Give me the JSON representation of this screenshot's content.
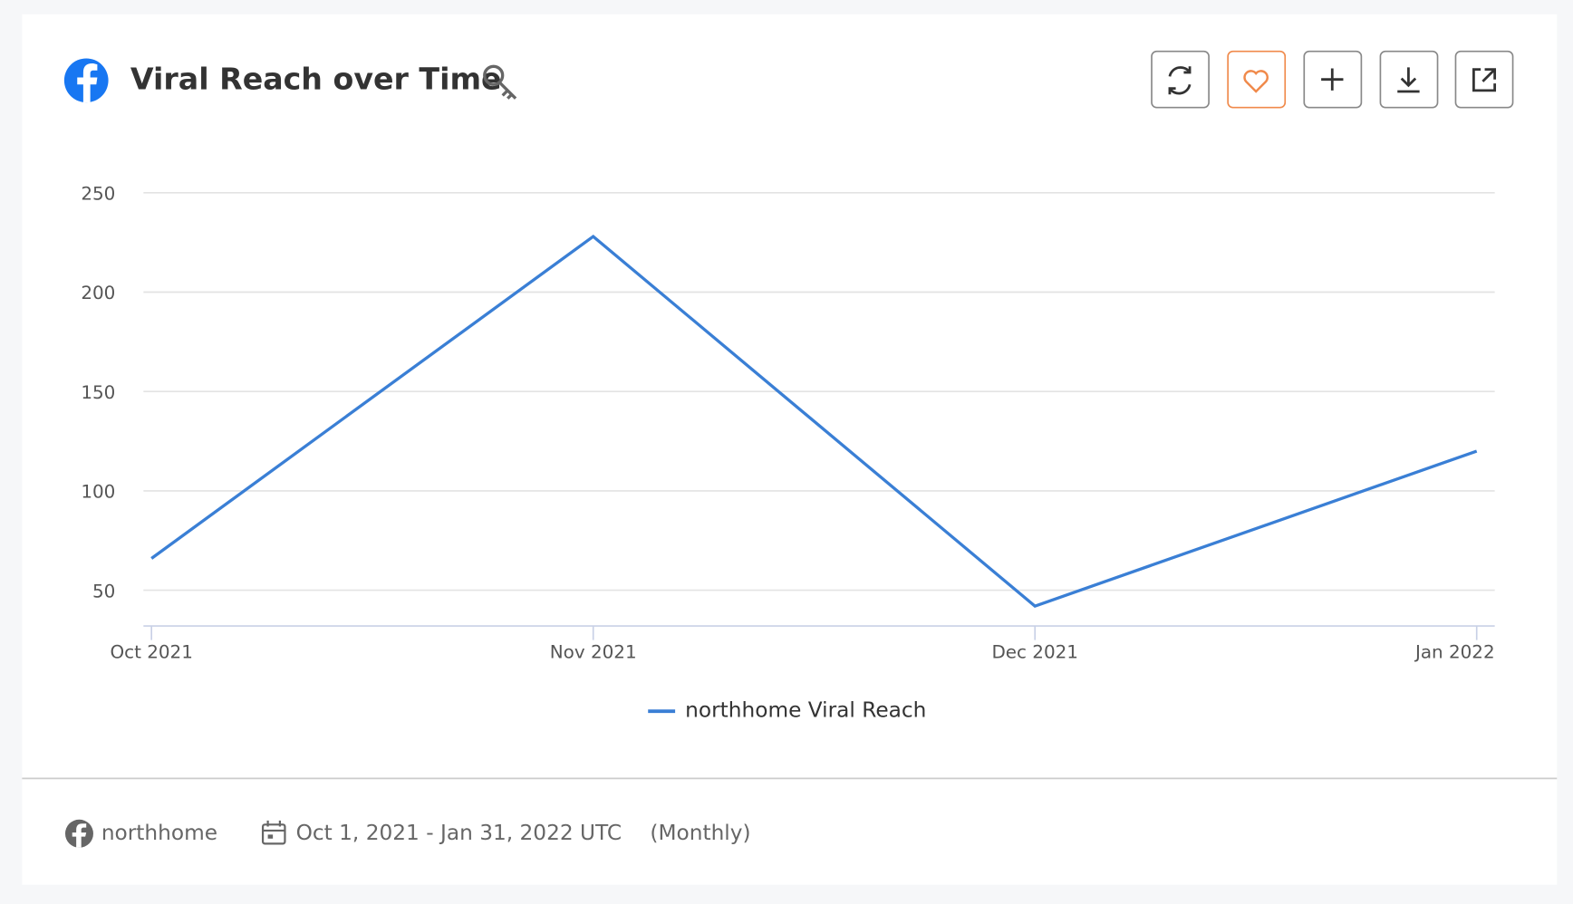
{
  "chart_data": {
    "type": "line",
    "title": "Viral Reach over Time",
    "categories": [
      "Oct 2021",
      "Nov 2021",
      "Dec 2021",
      "Jan 2022"
    ],
    "series": [
      {
        "name": "northhome Viral Reach",
        "color": "#3a7fd5",
        "values": [
          66,
          228,
          42,
          120
        ]
      }
    ],
    "ylim": [
      32,
      250
    ],
    "yticks": [
      50,
      100,
      150,
      200,
      250
    ],
    "grid": true
  },
  "footer": {
    "account": "northhome",
    "date_range": "Oct 1, 2021 - Jan 31, 2022 UTC",
    "granularity": "(Monthly)"
  }
}
